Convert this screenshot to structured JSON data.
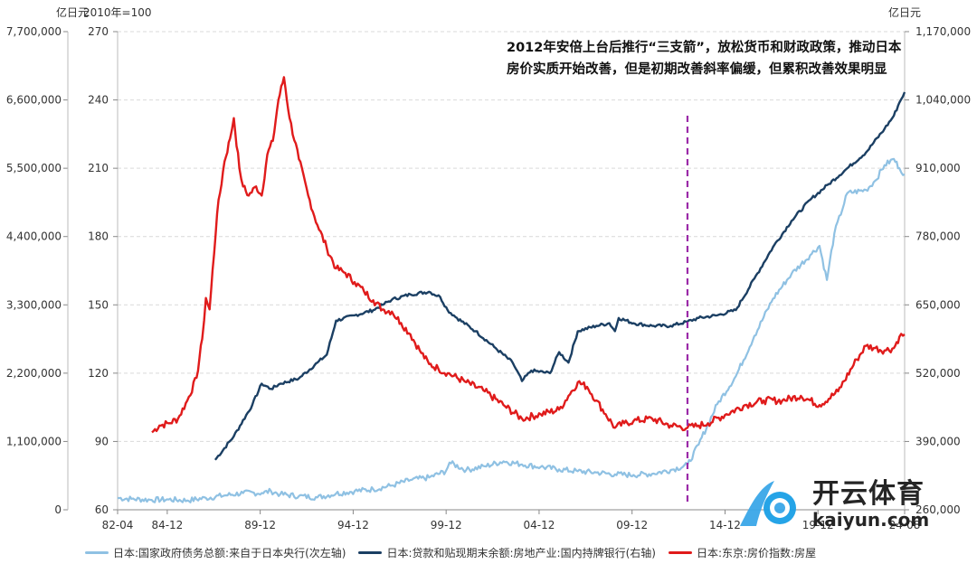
{
  "units": {
    "left_outer": "亿日元",
    "left_inner": "2010年=100",
    "right": "亿日元"
  },
  "annotation_text": "2012年安倍上台后推行“三支箭”，放松货币和财政政策，推动日本房价实质开始改善，但是初期改善斜率偏缓，但累积改善效果明显",
  "watermark": {
    "cn": "开云体育",
    "en": "kaiyun.com"
  },
  "colors": {
    "light_blue": "#8fc1e3",
    "dark_blue": "#1b3f63",
    "red": "#e01b1b",
    "marker": "#9b2aa8"
  },
  "chart_data": {
    "type": "line",
    "x_tick_labels": [
      "82-04",
      "84-12",
      "89-12",
      "94-12",
      "99-12",
      "04-12",
      "09-12",
      "14-12",
      "19-12",
      "24-08"
    ],
    "x_tick_years": [
      1982.25,
      1984.92,
      1989.92,
      1994.92,
      1999.92,
      2004.92,
      2009.92,
      2014.92,
      2019.92,
      2024.58
    ],
    "x_range": [
      1982.25,
      2024.58
    ],
    "axes": {
      "left_outer": {
        "range": [
          0,
          7700000
        ],
        "ticks": [
          0,
          1100000,
          2200000,
          3300000,
          4400000,
          5500000,
          6600000,
          7700000
        ],
        "tick_labels": [
          "0",
          "1,100,000",
          "2,200,000",
          "3,300,000",
          "4,400,000",
          "5,500,000",
          "6,600,000",
          "7,700,000"
        ]
      },
      "left_inner": {
        "range": [
          60,
          270
        ],
        "ticks": [
          60,
          90,
          120,
          150,
          180,
          210,
          240,
          270
        ],
        "tick_labels": [
          "60",
          "90",
          "120",
          "150",
          "180",
          "210",
          "240",
          "270"
        ]
      },
      "right": {
        "range": [
          260000,
          1170000
        ],
        "ticks": [
          260000,
          390000,
          520000,
          650000,
          780000,
          910000,
          1040000,
          1170000
        ],
        "tick_labels": [
          "260,000",
          "390,000",
          "520,000",
          "650,000",
          "780,000",
          "910,000",
          "1,040,000",
          "1,170,000"
        ]
      }
    },
    "grid": true,
    "vertical_marker_year": 2012.9,
    "series": [
      {
        "name": "日本:国家政府债务总额:来自于日本央行(次左轴)",
        "axis": "left_outer",
        "color": "#8fc1e3",
        "points": [
          [
            1982.25,
            190000
          ],
          [
            1983,
            175000
          ],
          [
            1984,
            160000
          ],
          [
            1985,
            165000
          ],
          [
            1986,
            150000
          ],
          [
            1987,
            190000
          ],
          [
            1988,
            230000
          ],
          [
            1989,
            270000
          ],
          [
            1990,
            270000
          ],
          [
            1990.5,
            300000
          ],
          [
            1991,
            250000
          ],
          [
            1992,
            220000
          ],
          [
            1993,
            200000
          ],
          [
            1994,
            260000
          ],
          [
            1995,
            300000
          ],
          [
            1996,
            330000
          ],
          [
            1997,
            390000
          ],
          [
            1998,
            480000
          ],
          [
            1999,
            520000
          ],
          [
            1999.9,
            620000
          ],
          [
            2000.1,
            760000
          ],
          [
            2001,
            640000
          ],
          [
            2002,
            700000
          ],
          [
            2003,
            780000
          ],
          [
            2004,
            730000
          ],
          [
            2005,
            690000
          ],
          [
            2006,
            650000
          ],
          [
            2007,
            620000
          ],
          [
            2008,
            600000
          ],
          [
            2009,
            570000
          ],
          [
            2010,
            560000
          ],
          [
            2011,
            580000
          ],
          [
            2012,
            640000
          ],
          [
            2012.9,
            720000
          ],
          [
            2013.5,
            1050000
          ],
          [
            2014.5,
            1700000
          ],
          [
            2015.5,
            2150000
          ],
          [
            2016.5,
            2800000
          ],
          [
            2017.5,
            3400000
          ],
          [
            2018.5,
            3800000
          ],
          [
            2019.5,
            4100000
          ],
          [
            2020,
            4250000
          ],
          [
            2020.4,
            3700000
          ],
          [
            2020.8,
            4450000
          ],
          [
            2021.5,
            5100000
          ],
          [
            2022.5,
            5150000
          ],
          [
            2023,
            5300000
          ],
          [
            2023.5,
            5550000
          ],
          [
            2024,
            5650000
          ],
          [
            2024.3,
            5500000
          ],
          [
            2024.58,
            5400000
          ]
        ]
      },
      {
        "name": "日本:贷款和贴现期末余额:房地产业:国内持牌银行(右轴)",
        "axis": "right",
        "color": "#1b3f63",
        "points": [
          [
            1987.5,
            355000
          ],
          [
            1988.5,
            400000
          ],
          [
            1989.5,
            460000
          ],
          [
            1990,
            500000
          ],
          [
            1990.5,
            490000
          ],
          [
            1991,
            500000
          ],
          [
            1992,
            510000
          ],
          [
            1993,
            540000
          ],
          [
            1993.5,
            555000
          ],
          [
            1994,
            620000
          ],
          [
            1995,
            630000
          ],
          [
            1996,
            640000
          ],
          [
            1996.5,
            650000
          ],
          [
            1997,
            660000
          ],
          [
            1998,
            670000
          ],
          [
            1999,
            675000
          ],
          [
            1999.6,
            665000
          ],
          [
            2000,
            640000
          ],
          [
            2000.5,
            625000
          ],
          [
            2001.5,
            600000
          ],
          [
            2002.5,
            570000
          ],
          [
            2003.5,
            540000
          ],
          [
            2004,
            505000
          ],
          [
            2004.5,
            525000
          ],
          [
            2005.5,
            520000
          ],
          [
            2006,
            560000
          ],
          [
            2006.5,
            540000
          ],
          [
            2007,
            600000
          ],
          [
            2008,
            610000
          ],
          [
            2008.7,
            615000
          ],
          [
            2009,
            600000
          ],
          [
            2009.2,
            625000
          ],
          [
            2010,
            615000
          ],
          [
            2011,
            610000
          ],
          [
            2012,
            610000
          ],
          [
            2012.9,
            618000
          ],
          [
            2013.5,
            625000
          ],
          [
            2014.5,
            630000
          ],
          [
            2015.5,
            640000
          ],
          [
            2016.5,
            700000
          ],
          [
            2017.5,
            760000
          ],
          [
            2018.5,
            810000
          ],
          [
            2019.5,
            850000
          ],
          [
            2020.5,
            880000
          ],
          [
            2021.5,
            910000
          ],
          [
            2022.5,
            940000
          ],
          [
            2023.5,
            985000
          ],
          [
            2024,
            1010000
          ],
          [
            2024.3,
            1035000
          ],
          [
            2024.58,
            1055000
          ]
        ]
      },
      {
        "name": "日本:东京:房价指数:房屋",
        "axis": "left_inner",
        "color": "#e01b1b",
        "points": [
          [
            1984.1,
            94
          ],
          [
            1984.5,
            97
          ],
          [
            1985,
            98
          ],
          [
            1985.5,
            100
          ],
          [
            1986,
            108
          ],
          [
            1986.5,
            118
          ],
          [
            1986.8,
            135
          ],
          [
            1987,
            153
          ],
          [
            1987.2,
            148
          ],
          [
            1987.6,
            190
          ],
          [
            1988,
            213
          ],
          [
            1988.3,
            223
          ],
          [
            1988.5,
            232
          ],
          [
            1988.8,
            210
          ],
          [
            1989,
            202
          ],
          [
            1989.3,
            198
          ],
          [
            1989.7,
            202
          ],
          [
            1990,
            198
          ],
          [
            1990.3,
            216
          ],
          [
            1990.6,
            222
          ],
          [
            1990.9,
            240
          ],
          [
            1991.2,
            250
          ],
          [
            1991.5,
            232
          ],
          [
            1992,
            214
          ],
          [
            1992.5,
            198
          ],
          [
            1993,
            185
          ],
          [
            1993.5,
            175
          ],
          [
            1994,
            166
          ],
          [
            1994.5,
            164
          ],
          [
            1995,
            160
          ],
          [
            1995.5,
            156
          ],
          [
            1996,
            152
          ],
          [
            1996.5,
            148
          ],
          [
            1997,
            147
          ],
          [
            1997.5,
            142
          ],
          [
            1998,
            137
          ],
          [
            1998.5,
            130
          ],
          [
            1999,
            124
          ],
          [
            1999.5,
            122
          ],
          [
            2000,
            120
          ],
          [
            2001,
            116
          ],
          [
            2002,
            112
          ],
          [
            2003,
            106
          ],
          [
            2004,
            100
          ],
          [
            2005,
            102
          ],
          [
            2006,
            104
          ],
          [
            2006.5,
            110
          ],
          [
            2007,
            116
          ],
          [
            2007.5,
            114
          ],
          [
            2008,
            108
          ],
          [
            2008.5,
            102
          ],
          [
            2009,
            96
          ],
          [
            2009.5,
            98
          ],
          [
            2010,
            99
          ],
          [
            2011,
            100
          ],
          [
            2012,
            97
          ],
          [
            2012.9,
            96
          ],
          [
            2013.5,
            97
          ],
          [
            2014,
            98
          ],
          [
            2015,
            102
          ],
          [
            2016,
            106
          ],
          [
            2017,
            108
          ],
          [
            2018,
            108
          ],
          [
            2019,
            110
          ],
          [
            2020,
            106
          ],
          [
            2021,
            112
          ],
          [
            2022,
            126
          ],
          [
            2022.5,
            132
          ],
          [
            2023,
            131
          ],
          [
            2023.5,
            130
          ],
          [
            2024,
            131
          ],
          [
            2024.3,
            136
          ],
          [
            2024.58,
            137
          ]
        ]
      }
    ]
  }
}
